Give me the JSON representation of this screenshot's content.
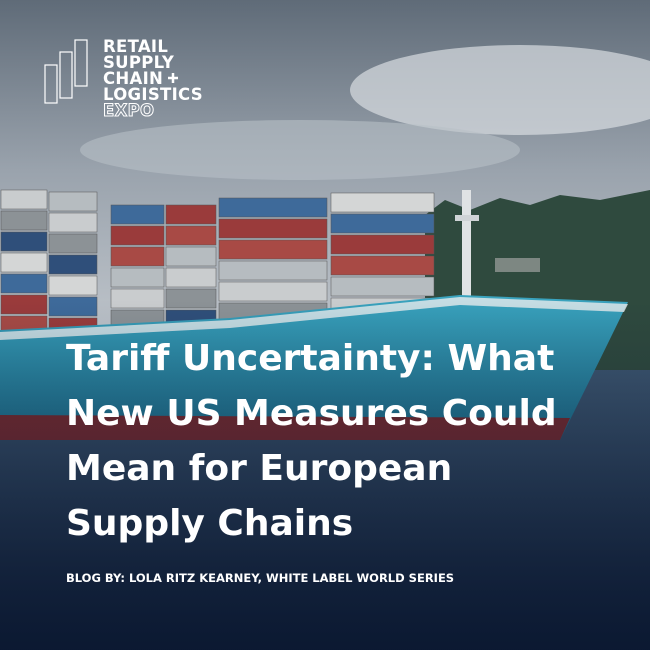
{
  "logo": {
    "lines": [
      "RETAIL",
      "SUPPLY",
      "CHAIN",
      "LOGISTICS",
      "EXPO"
    ]
  },
  "title": {
    "lines": [
      "Tariff Uncertainty: What",
      "New US Measures Could",
      "Mean for European",
      "Supply Chains"
    ]
  },
  "byline": "BLOG BY: LOLA RITZ KEARNEY, WHITE LABEL WORLD SERIES"
}
